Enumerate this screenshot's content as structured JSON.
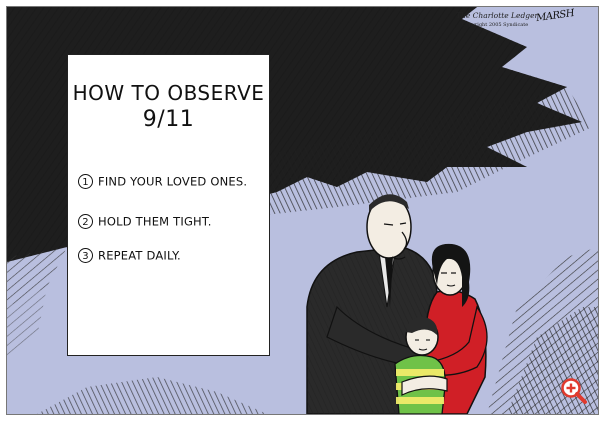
{
  "sign": {
    "title_line1": "HOW TO OBSERVE",
    "title_line2": "9/11",
    "items": [
      {
        "number": "1",
        "text": "FIND YOUR LOVED ONES."
      },
      {
        "number": "2",
        "text": "HOLD THEM TIGHT."
      },
      {
        "number": "3",
        "text": "REPEAT DAILY."
      }
    ]
  },
  "signature": {
    "publication": "The Charlotte Ledger",
    "copyright": "Copyright 2005 Syndicate",
    "artist": "MARSH"
  },
  "zoom_button": {
    "icon": "zoom-in-icon"
  },
  "colors": {
    "sky": "#b9bfdf",
    "shirt_red": "#d01f26",
    "stripe_green": "#6fc248",
    "stripe_yellow": "#f0eb6a",
    "zoom_accent": "#e03a2e"
  }
}
